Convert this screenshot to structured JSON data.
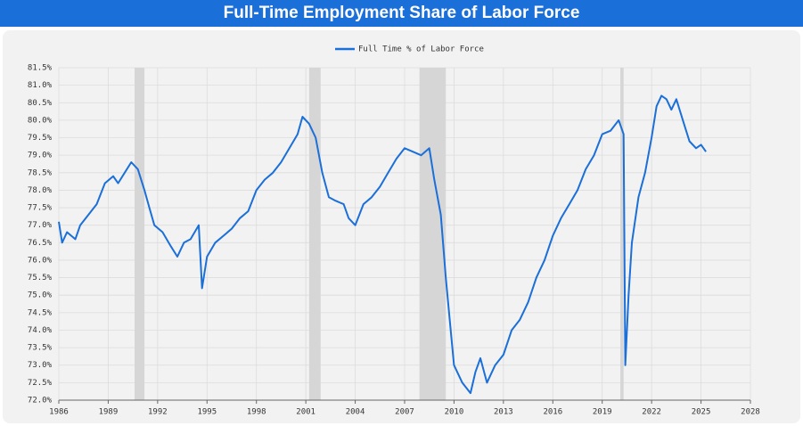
{
  "chart_data": {
    "type": "line",
    "title": "Full-Time Employment Share of Labor Force",
    "series": [
      {
        "name": "Full Time % of Labor Force",
        "color": "#1b6fd8",
        "x": [
          1986.0,
          1986.2,
          1986.5,
          1987.0,
          1987.3,
          1987.8,
          1988.3,
          1988.8,
          1989.3,
          1989.6,
          1990.0,
          1990.4,
          1990.8,
          1991.2,
          1991.5,
          1991.8,
          1992.3,
          1992.8,
          1993.2,
          1993.6,
          1994.0,
          1994.5,
          1994.7,
          1995.0,
          1995.5,
          1996.0,
          1996.5,
          1997.0,
          1997.5,
          1998.0,
          1998.5,
          1999.0,
          1999.5,
          2000.0,
          2000.5,
          2000.8,
          2001.2,
          2001.6,
          2002.0,
          2002.4,
          2002.8,
          2003.3,
          2003.6,
          2004.0,
          2004.5,
          2005.0,
          2005.5,
          2006.0,
          2006.5,
          2007.0,
          2007.5,
          2008.0,
          2008.5,
          2008.8,
          2009.2,
          2009.5,
          2009.8,
          2010.0,
          2010.5,
          2011.0,
          2011.3,
          2011.6,
          2012.0,
          2012.5,
          2013.0,
          2013.5,
          2014.0,
          2014.5,
          2015.0,
          2015.5,
          2016.0,
          2016.5,
          2017.0,
          2017.5,
          2018.0,
          2018.5,
          2019.0,
          2019.5,
          2020.0,
          2020.3,
          2020.4,
          2020.6,
          2020.8,
          2021.2,
          2021.6,
          2022.0,
          2022.3,
          2022.6,
          2022.9,
          2023.2,
          2023.5,
          2023.9,
          2024.3,
          2024.7,
          2025.0,
          2025.3
        ],
        "values": [
          77.1,
          76.5,
          76.8,
          76.6,
          77.0,
          77.3,
          77.6,
          78.2,
          78.4,
          78.2,
          78.5,
          78.8,
          78.6,
          78.0,
          77.5,
          77.0,
          76.8,
          76.4,
          76.1,
          76.5,
          76.6,
          77.0,
          75.2,
          76.1,
          76.5,
          76.7,
          76.9,
          77.2,
          77.4,
          78.0,
          78.3,
          78.5,
          78.8,
          79.2,
          79.6,
          80.1,
          79.9,
          79.5,
          78.5,
          77.8,
          77.7,
          77.6,
          77.2,
          77.0,
          77.6,
          77.8,
          78.1,
          78.5,
          78.9,
          79.2,
          79.1,
          79.0,
          79.2,
          78.3,
          77.3,
          75.5,
          74.0,
          73.0,
          72.5,
          72.2,
          72.8,
          73.2,
          72.5,
          73.0,
          73.3,
          74.0,
          74.3,
          74.8,
          75.5,
          76.0,
          76.7,
          77.2,
          77.6,
          78.0,
          78.6,
          79.0,
          79.6,
          79.7,
          80.0,
          79.6,
          73.0,
          75.0,
          76.5,
          77.8,
          78.5,
          79.5,
          80.4,
          80.7,
          80.6,
          80.3,
          80.6,
          80.0,
          79.4,
          79.2,
          79.3,
          79.1
        ]
      }
    ],
    "recessions": [
      [
        1990.6,
        1991.2
      ],
      [
        2001.2,
        2001.9
      ],
      [
        2007.9,
        2009.5
      ],
      [
        2020.1,
        2020.3
      ]
    ],
    "recession_color": "#d6d6d6",
    "xlim": [
      1986,
      2028
    ],
    "xticks": [
      1986,
      1989,
      1992,
      1995,
      1998,
      2001,
      2004,
      2007,
      2010,
      2013,
      2016,
      2019,
      2022,
      2025,
      2028
    ],
    "ylim": [
      72.0,
      81.5
    ],
    "yticks": [
      {
        "value": 72.0,
        "label": "72.0%"
      },
      {
        "value": 72.5,
        "label": "72.5%"
      },
      {
        "value": 73.0,
        "label": "73.0%"
      },
      {
        "value": 73.5,
        "label": "73.5%"
      },
      {
        "value": 74.0,
        "label": "74.0%"
      },
      {
        "value": 74.5,
        "label": "74.5%"
      },
      {
        "value": 75.0,
        "label": "75.0%"
      },
      {
        "value": 75.5,
        "label": "75.5%"
      },
      {
        "value": 76.0,
        "label": "76.0%"
      },
      {
        "value": 76.5,
        "label": "76.5%"
      },
      {
        "value": 77.0,
        "label": "77.0%"
      },
      {
        "value": 77.5,
        "label": "77.5%"
      },
      {
        "value": 78.0,
        "label": "78.0%"
      },
      {
        "value": 78.5,
        "label": "78.5%"
      },
      {
        "value": 79.0,
        "label": "79.0%"
      },
      {
        "value": 79.5,
        "label": "79.5%"
      },
      {
        "value": 80.0,
        "label": "80.0%"
      },
      {
        "value": 80.5,
        "label": "80.5%"
      },
      {
        "value": 81.0,
        "label": "81.0%"
      },
      {
        "value": 81.5,
        "label": "81.5%"
      }
    ],
    "grid": true
  }
}
